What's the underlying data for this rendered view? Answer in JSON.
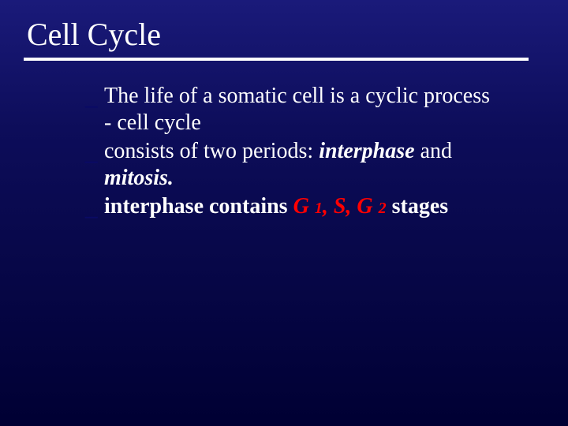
{
  "slide": {
    "title": "Cell Cycle",
    "title_color": "#ffffff",
    "title_fontsize": 40,
    "underline_color": "#ffffff",
    "underline_width": 640,
    "underline_thickness": 4,
    "background_gradient": [
      "#1a1a7a",
      "#0d0d5a",
      "#000033"
    ],
    "bullet_marker": "_",
    "bullet_marker_color": "#0a0a66",
    "body_color": "#ffffff",
    "body_fontsize": 28,
    "line_height": 34,
    "emphasis_color": "#ff0000",
    "subscript_fontsize": 20,
    "font_family": "Times New Roman",
    "bullets": [
      {
        "pre1": "The life of a somatic cell is a cyclic process    -   cell cycle"
      },
      {
        "pre1": "consists of two periods: ",
        "emph1": "interphase",
        "mid1": " and ",
        "emph2": "mitosis",
        "post1": "."
      },
      {
        "pre1": "interphase contains    ",
        "g1_g": "G ",
        "g1_n": "1",
        "comma1": ", ",
        "s": "S",
        "comma2": ", ",
        "g2_g": "G ",
        "g2_n": "2",
        "stages": " stages"
      }
    ]
  }
}
